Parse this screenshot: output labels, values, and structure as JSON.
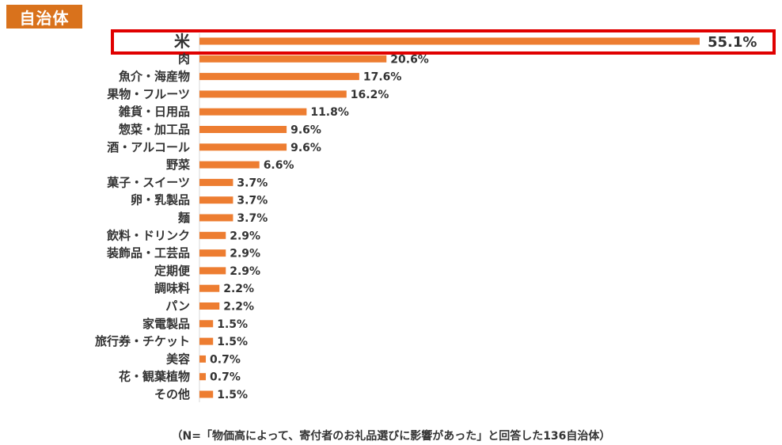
{
  "header": {
    "title": "自治体"
  },
  "chart_data": {
    "type": "bar",
    "orientation": "horizontal",
    "categories": [
      "米",
      "肉",
      "魚介・海産物",
      "果物・フルーツ",
      "雑貨・日用品",
      "惣菜・加工品",
      "酒・アルコール",
      "野菜",
      "菓子・スイーツ",
      "卵・乳製品",
      "麺",
      "飲料・ドリンク",
      "装飾品・工芸品",
      "定期便",
      "調味料",
      "パン",
      "家電製品",
      "旅行券・チケット",
      "美容",
      "花・観葉植物",
      "その他"
    ],
    "values": [
      55.1,
      20.6,
      17.6,
      16.2,
      11.8,
      9.6,
      9.6,
      6.6,
      3.7,
      3.7,
      3.7,
      2.9,
      2.9,
      2.9,
      2.2,
      2.2,
      1.5,
      1.5,
      0.7,
      0.7,
      1.5
    ],
    "value_labels": [
      "55.1%",
      "20.6%",
      "17.6%",
      "16.2%",
      "11.8%",
      "9.6%",
      "9.6%",
      "6.6%",
      "3.7%",
      "3.7%",
      "3.7%",
      "2.9%",
      "2.9%",
      "2.9%",
      "2.2%",
      "2.2%",
      "1.5%",
      "1.5%",
      "0.7%",
      "0.7%",
      "1.5%"
    ],
    "highlighted_category": "米",
    "bar_color": "#ed7d31",
    "highlight_border_color": "#e00000",
    "xlim": [
      0,
      57
    ]
  },
  "footnote": "（N=「物価高によって、寄付者のお礼品選びに影響があった」と回答した136自治体）"
}
